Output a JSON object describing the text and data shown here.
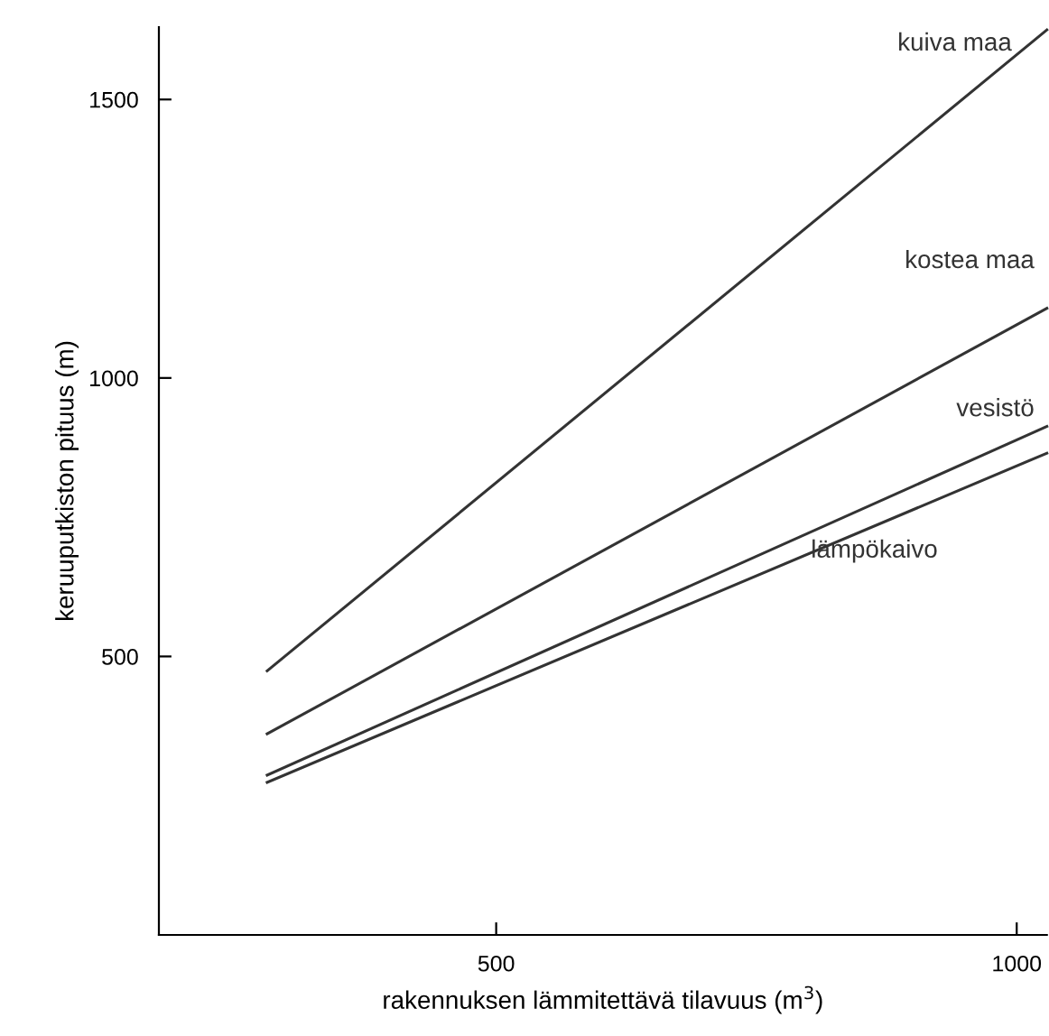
{
  "chart_data": {
    "type": "line",
    "xlabel": "rakennuksen lämmitettävä tilavuus (m$^{3}$)",
    "ylabel": "keruuputkiston pituus (m)",
    "xlim": [
      176,
      1029
    ],
    "ylim": [
      0,
      1630
    ],
    "xticks": [
      500,
      1000
    ],
    "yticks": [
      500,
      1000,
      1500
    ],
    "grid": false,
    "legend": false,
    "marker": "none",
    "line_style": "solid",
    "x": [
      280,
      1029
    ],
    "series": [
      {
        "name": "kuiva maa",
        "color": "#333333",
        "values": [
          474,
          1625
        ]
      },
      {
        "name": "kostea maa",
        "color": "#333333",
        "values": [
          361,
          1125
        ]
      },
      {
        "name": "vesistö",
        "color": "#333333",
        "values": [
          287,
          913
        ]
      },
      {
        "name": "lämpökaivo",
        "color": "#333333",
        "values": [
          274,
          865
        ]
      }
    ]
  }
}
